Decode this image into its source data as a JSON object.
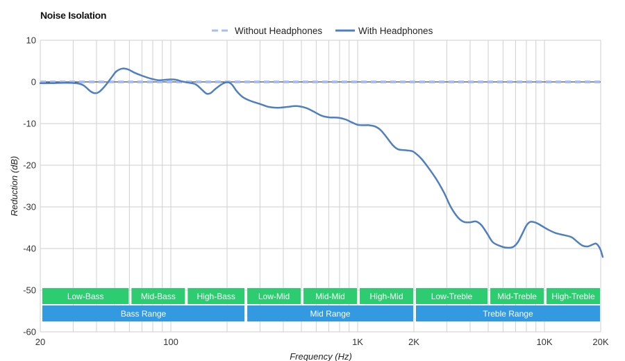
{
  "chart_data": {
    "type": "line",
    "title": "Noise Isolation",
    "xlabel": "Frequency (Hz)",
    "ylabel": "Reduction (dB)",
    "xscale": "log",
    "xlim": [
      20,
      20000
    ],
    "ylim": [
      -60,
      10
    ],
    "yticks": [
      10,
      0,
      -10,
      -20,
      -30,
      -40,
      -50,
      -60
    ],
    "xticks": [
      {
        "value": 20,
        "label": "20"
      },
      {
        "value": 100,
        "label": "100"
      },
      {
        "value": 1000,
        "label": "1K"
      },
      {
        "value": 2000,
        "label": "2K"
      },
      {
        "value": 10000,
        "label": "10K"
      },
      {
        "value": 20000,
        "label": "20K"
      }
    ],
    "grid": true,
    "legend_position": "top-center",
    "series": [
      {
        "name": "Without Headphones",
        "color": "#a9bdf5",
        "dash": true,
        "points": [
          [
            20,
            0
          ],
          [
            20000,
            0
          ]
        ]
      },
      {
        "name": "With Headphones",
        "color": "#4f7fc0",
        "dash": false,
        "points": [
          [
            20,
            -0.3
          ],
          [
            23,
            -0.3
          ],
          [
            27,
            -0.2
          ],
          [
            31,
            -0.3
          ],
          [
            34,
            -0.8
          ],
          [
            37,
            -2.2
          ],
          [
            39,
            -2.7
          ],
          [
            41,
            -2.5
          ],
          [
            44,
            -1.2
          ],
          [
            48,
            1.0
          ],
          [
            51,
            2.5
          ],
          [
            55,
            3.2
          ],
          [
            59,
            3.0
          ],
          [
            64,
            2.2
          ],
          [
            70,
            1.5
          ],
          [
            78,
            0.8
          ],
          [
            86,
            0.4
          ],
          [
            93,
            0.5
          ],
          [
            100,
            0.6
          ],
          [
            107,
            0.5
          ],
          [
            115,
            0.1
          ],
          [
            125,
            -0.2
          ],
          [
            136,
            -0.6
          ],
          [
            147,
            -1.9
          ],
          [
            155,
            -2.8
          ],
          [
            163,
            -2.7
          ],
          [
            174,
            -1.6
          ],
          [
            190,
            -0.4
          ],
          [
            203,
            -0.1
          ],
          [
            213,
            -0.7
          ],
          [
            225,
            -2.2
          ],
          [
            242,
            -3.6
          ],
          [
            265,
            -4.5
          ],
          [
            300,
            -5.3
          ],
          [
            335,
            -6.0
          ],
          [
            375,
            -6.2
          ],
          [
            420,
            -6.0
          ],
          [
            470,
            -5.8
          ],
          [
            525,
            -6.2
          ],
          [
            575,
            -7.0
          ],
          [
            640,
            -8.1
          ],
          [
            700,
            -8.5
          ],
          [
            790,
            -8.6
          ],
          [
            860,
            -9.0
          ],
          [
            930,
            -9.7
          ],
          [
            1000,
            -10.3
          ],
          [
            1080,
            -10.4
          ],
          [
            1150,
            -10.4
          ],
          [
            1240,
            -10.7
          ],
          [
            1330,
            -11.6
          ],
          [
            1430,
            -13.3
          ],
          [
            1550,
            -15.3
          ],
          [
            1650,
            -16.2
          ],
          [
            1800,
            -16.4
          ],
          [
            1950,
            -16.6
          ],
          [
            2050,
            -17.2
          ],
          [
            2200,
            -18.5
          ],
          [
            2400,
            -20.7
          ],
          [
            2650,
            -23.5
          ],
          [
            2900,
            -26.6
          ],
          [
            3150,
            -30.0
          ],
          [
            3450,
            -32.6
          ],
          [
            3700,
            -33.6
          ],
          [
            4000,
            -33.7
          ],
          [
            4300,
            -33.5
          ],
          [
            4600,
            -34.4
          ],
          [
            4950,
            -36.5
          ],
          [
            5300,
            -38.5
          ],
          [
            5800,
            -39.4
          ],
          [
            6300,
            -39.8
          ],
          [
            6800,
            -39.6
          ],
          [
            7200,
            -38.5
          ],
          [
            7600,
            -36.5
          ],
          [
            8000,
            -34.5
          ],
          [
            8400,
            -33.6
          ],
          [
            9000,
            -33.8
          ],
          [
            9700,
            -34.6
          ],
          [
            10500,
            -35.5
          ],
          [
            11500,
            -36.3
          ],
          [
            12800,
            -36.8
          ],
          [
            14000,
            -37.3
          ],
          [
            15000,
            -38.4
          ],
          [
            16000,
            -39.3
          ],
          [
            17000,
            -39.5
          ],
          [
            18000,
            -39.1
          ],
          [
            18800,
            -38.8
          ],
          [
            19400,
            -39.3
          ],
          [
            20000,
            -40.4
          ],
          [
            20500,
            -42.0
          ]
        ]
      }
    ],
    "bands": [
      {
        "row": 1,
        "from": 20,
        "to": 60,
        "label": "Low-Bass",
        "color": "#2ecc71"
      },
      {
        "row": 1,
        "from": 60,
        "to": 120,
        "label": "Mid-Bass",
        "color": "#2ecc71"
      },
      {
        "row": 1,
        "from": 120,
        "to": 250,
        "label": "High-Bass",
        "color": "#2ecc71"
      },
      {
        "row": 1,
        "from": 250,
        "to": 500,
        "label": "Low-Mid",
        "color": "#2ecc71"
      },
      {
        "row": 1,
        "from": 500,
        "to": 1000,
        "label": "Mid-Mid",
        "color": "#2ecc71"
      },
      {
        "row": 1,
        "from": 1000,
        "to": 2000,
        "label": "High-Mid",
        "color": "#2ecc71"
      },
      {
        "row": 1,
        "from": 2000,
        "to": 5000,
        "label": "Low-Treble",
        "color": "#2ecc71"
      },
      {
        "row": 1,
        "from": 5000,
        "to": 10000,
        "label": "Mid-Treble",
        "color": "#2ecc71"
      },
      {
        "row": 1,
        "from": 10000,
        "to": 20000,
        "label": "High-Treble",
        "color": "#2ecc71"
      },
      {
        "row": 2,
        "from": 20,
        "to": 250,
        "label": "Bass Range",
        "color": "#3399e0"
      },
      {
        "row": 2,
        "from": 250,
        "to": 2000,
        "label": "Mid Range",
        "color": "#3399e0"
      },
      {
        "row": 2,
        "from": 2000,
        "to": 20000,
        "label": "Treble Range",
        "color": "#3399e0"
      }
    ]
  }
}
